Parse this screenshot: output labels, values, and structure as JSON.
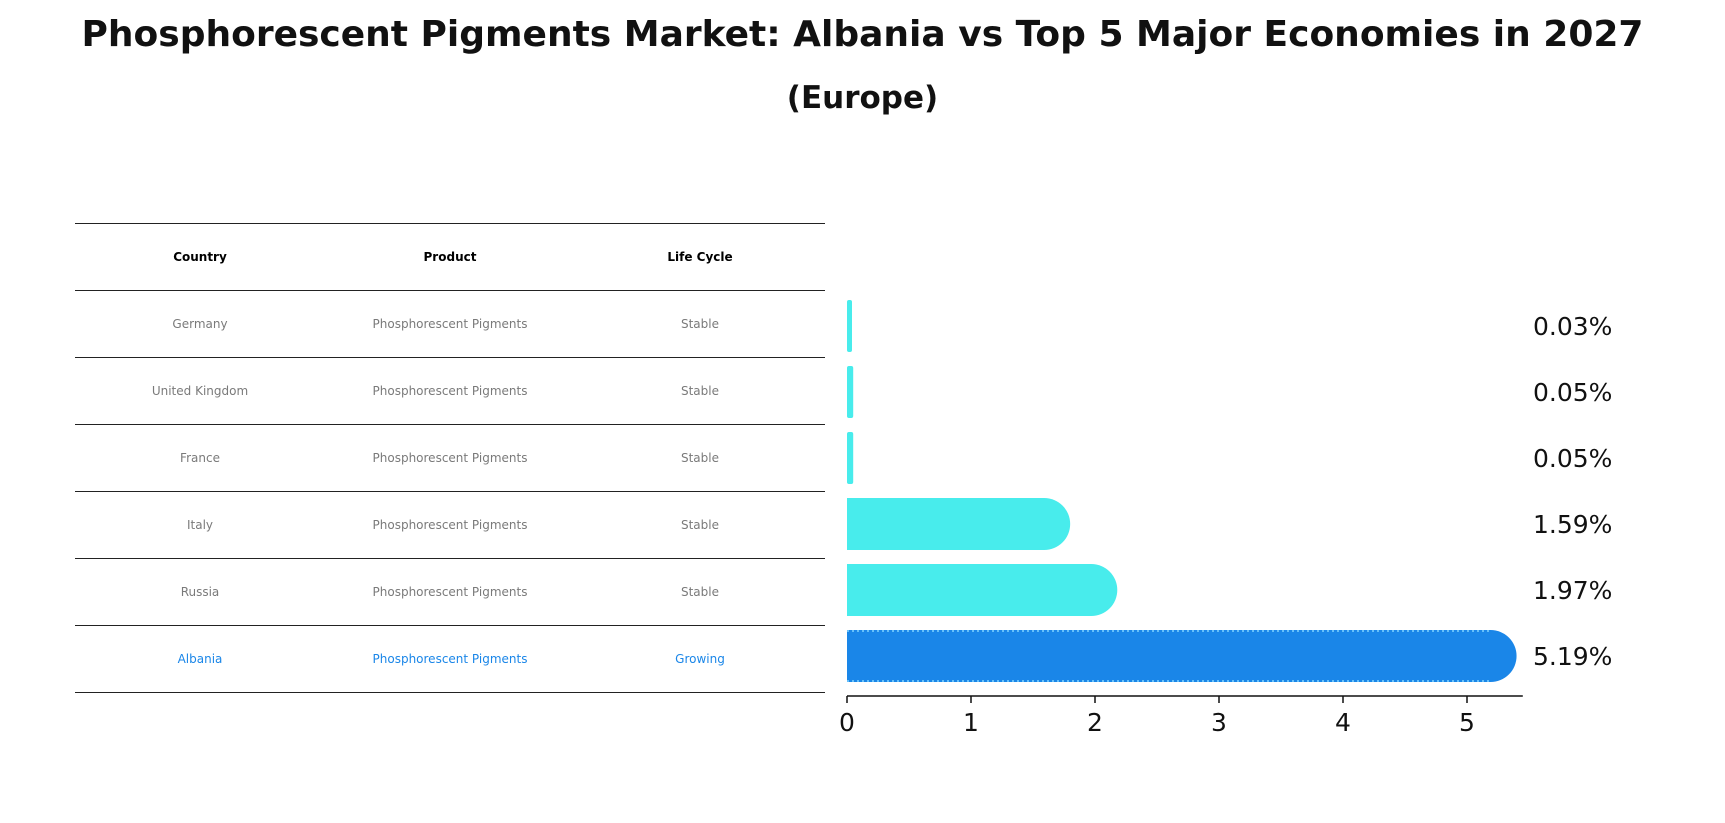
{
  "title": "Phosphorescent Pigments Market: Albania vs Top 5 Major Economies in 2027",
  "subtitle": "(Europe)",
  "table": {
    "headers": [
      "Country",
      "Product",
      "Life Cycle"
    ],
    "rows": [
      {
        "country": "Germany",
        "product": "Phosphorescent Pigments",
        "life_cycle": "Stable"
      },
      {
        "country": "United Kingdom",
        "product": "Phosphorescent Pigments",
        "life_cycle": "Stable"
      },
      {
        "country": "France",
        "product": "Phosphorescent Pigments",
        "life_cycle": "Stable"
      },
      {
        "country": "Italy",
        "product": "Phosphorescent Pigments",
        "life_cycle": "Stable"
      },
      {
        "country": "Russia",
        "product": "Phosphorescent Pigments",
        "life_cycle": "Stable"
      },
      {
        "country": "Albania",
        "product": "Phosphorescent Pigments",
        "life_cycle": "Growing"
      }
    ],
    "highlight_color": "#1a86e8",
    "text_color": "#7a7a7a"
  },
  "chart_data": {
    "type": "bar",
    "orientation": "horizontal",
    "categories": [
      "Germany",
      "United Kingdom",
      "France",
      "Italy",
      "Russia",
      "Albania"
    ],
    "values": [
      0.03,
      0.05,
      0.05,
      1.59,
      1.97,
      5.19
    ],
    "value_labels": [
      "0.03%",
      "0.05%",
      "0.05%",
      "1.59%",
      "1.97%",
      "5.19%"
    ],
    "xlim": [
      0,
      5.45
    ],
    "xticks": [
      "0",
      "1",
      "2",
      "3",
      "4",
      "5"
    ],
    "highlight_category": "Albania",
    "colors": {
      "default": "#48ecec",
      "highlight": "#1a86e8"
    },
    "grid": false
  }
}
